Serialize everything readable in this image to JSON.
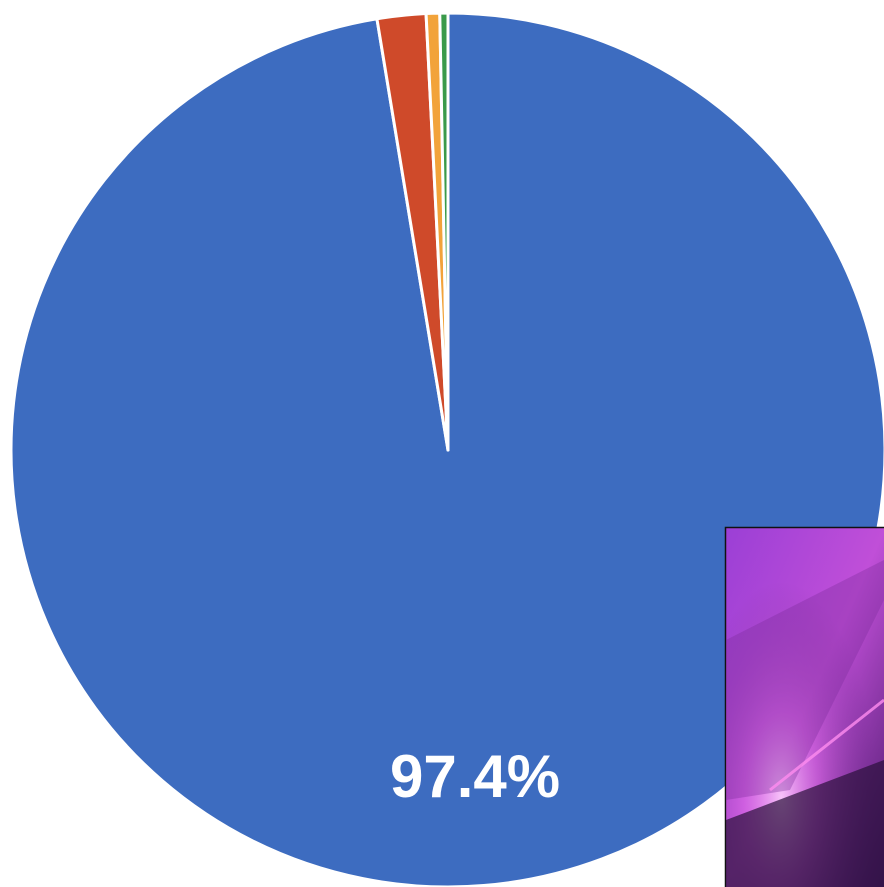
{
  "chart_data": {
    "type": "pie",
    "values": [
      97.4,
      1.8,
      0.5,
      0.3
    ],
    "value_labels": [
      "97.4%",
      null,
      null,
      null
    ],
    "colors": [
      "#3d6cc0",
      "#cf4a2a",
      "#f2a33a",
      "#3a9a4a"
    ]
  }
}
